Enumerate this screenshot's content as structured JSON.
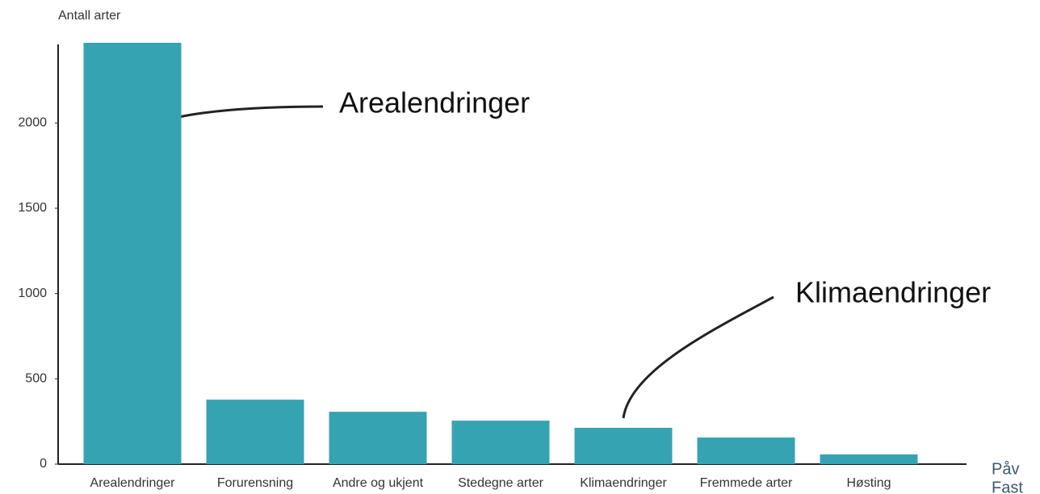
{
  "chart_data": {
    "type": "bar",
    "y_label": "Antall arter",
    "categories": [
      "Arealendringer",
      "Forurensning",
      "Andre og ukjent",
      "Stedegne arter",
      "Klimaendringer",
      "Fremmede arter",
      "Høsting"
    ],
    "values": [
      2470,
      378,
      307,
      255,
      213,
      156,
      57
    ],
    "color": "#36a3b3",
    "ylim": [
      0,
      2470
    ],
    "yticks": [
      0,
      500,
      1000,
      1500,
      2000
    ],
    "grid": false,
    "annotations": [
      "Arealendringer",
      "Klimaendringer"
    ],
    "side_text": [
      "Påv",
      "Fast"
    ]
  }
}
